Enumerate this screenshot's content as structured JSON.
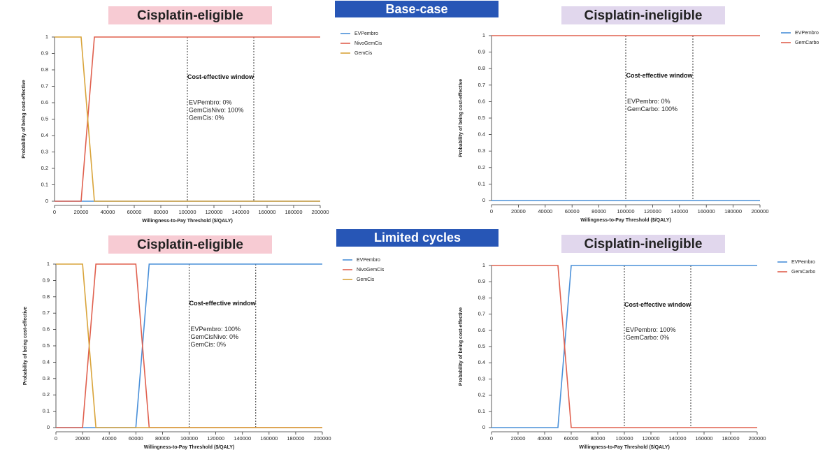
{
  "section_labels": [
    "Base-case",
    "Limited cycles"
  ],
  "chart_data": [
    {
      "type": "line",
      "title": "Cisplatin-eligible",
      "x_label": "Willingness-to-Pay Threshold ($/QALY)",
      "y_label": "Probability of being cost-effective",
      "x": [
        0,
        10000,
        20000,
        30000,
        40000,
        50000,
        60000,
        70000,
        80000,
        90000,
        100000,
        110000,
        120000,
        130000,
        140000,
        150000,
        160000,
        170000,
        180000,
        190000,
        200000
      ],
      "series": [
        {
          "name": "EVPembro",
          "color": "#4a90d9",
          "values": [
            0,
            0,
            0,
            0,
            0,
            0,
            0,
            0,
            0,
            0,
            0,
            0,
            0,
            0,
            0,
            0,
            0,
            0,
            0,
            0,
            0
          ]
        },
        {
          "name": "NivoGemCis",
          "color": "#e0604e",
          "values": [
            0,
            0,
            0,
            1,
            1,
            1,
            1,
            1,
            1,
            1,
            1,
            1,
            1,
            1,
            1,
            1,
            1,
            1,
            1,
            1,
            1
          ]
        },
        {
          "name": "GemCis",
          "color": "#d9a43a",
          "values": [
            1,
            1,
            1,
            0,
            0,
            0,
            0,
            0,
            0,
            0,
            0,
            0,
            0,
            0,
            0,
            0,
            0,
            0,
            0,
            0,
            0
          ]
        }
      ],
      "xlim": [
        0,
        200000
      ],
      "xticks": [
        0,
        20000,
        40000,
        60000,
        80000,
        100000,
        120000,
        140000,
        160000,
        180000,
        200000
      ],
      "ylim": [
        0,
        1
      ],
      "yticks": [
        0,
        0.1,
        0.2,
        0.3,
        0.4,
        0.5,
        0.6,
        0.7,
        0.8,
        0.9,
        1
      ],
      "vlines": [
        100000,
        150000
      ],
      "annotation": {
        "title": "Cost-effective window",
        "lines": [
          {
            "text": "EVPembro: 0%",
            "color": "#3b73c4"
          },
          {
            "text": "GemCisNivo: 100%",
            "color": "#d9432e"
          },
          {
            "text": "GemCis: 0%",
            "color": "#c97a1e"
          }
        ]
      }
    },
    {
      "type": "line",
      "title": "Cisplatin-ineligible",
      "x_label": "Willingness-to-Pay Threshold ($/QALY)",
      "y_label": "Probability of being cost-effective",
      "x": [
        0,
        10000,
        20000,
        30000,
        40000,
        50000,
        60000,
        70000,
        80000,
        90000,
        100000,
        110000,
        120000,
        130000,
        140000,
        150000,
        160000,
        170000,
        180000,
        190000,
        200000
      ],
      "series": [
        {
          "name": "EVPembro",
          "color": "#4a90d9",
          "values": [
            0,
            0,
            0,
            0,
            0,
            0,
            0,
            0,
            0,
            0,
            0,
            0,
            0,
            0,
            0,
            0,
            0,
            0,
            0,
            0,
            0
          ]
        },
        {
          "name": "GemCarbo",
          "color": "#e0604e",
          "values": [
            1,
            1,
            1,
            1,
            1,
            1,
            1,
            1,
            1,
            1,
            1,
            1,
            1,
            1,
            1,
            1,
            1,
            1,
            1,
            1,
            1
          ]
        }
      ],
      "xlim": [
        0,
        200000
      ],
      "xticks": [
        0,
        20000,
        40000,
        60000,
        80000,
        100000,
        120000,
        140000,
        160000,
        180000,
        200000
      ],
      "ylim": [
        0,
        1
      ],
      "yticks": [
        0,
        0.1,
        0.2,
        0.3,
        0.4,
        0.5,
        0.6,
        0.7,
        0.8,
        0.9,
        1
      ],
      "vlines": [
        100000,
        150000
      ],
      "annotation": {
        "title": "Cost-effective window",
        "lines": [
          {
            "text": "EVPembro: 0%",
            "color": "#3b73c4"
          },
          {
            "text": "GemCarbo: 100%",
            "color": "#d9432e"
          }
        ]
      }
    },
    {
      "type": "line",
      "title": "Cisplatin-eligible",
      "x_label": "Willingness-to-Pay Threshold ($/QALY)",
      "y_label": "Probability of being cost-effective",
      "x": [
        0,
        10000,
        20000,
        30000,
        40000,
        50000,
        60000,
        70000,
        80000,
        90000,
        100000,
        110000,
        120000,
        130000,
        140000,
        150000,
        160000,
        170000,
        180000,
        190000,
        200000
      ],
      "series": [
        {
          "name": "EVPembro",
          "color": "#4a90d9",
          "values": [
            0,
            0,
            0,
            0,
            0,
            0,
            0,
            1,
            1,
            1,
            1,
            1,
            1,
            1,
            1,
            1,
            1,
            1,
            1,
            1,
            1
          ]
        },
        {
          "name": "NivoGemCis",
          "color": "#e0604e",
          "values": [
            0,
            0,
            0,
            1,
            1,
            1,
            1,
            0,
            0,
            0,
            0,
            0,
            0,
            0,
            0,
            0,
            0,
            0,
            0,
            0,
            0
          ]
        },
        {
          "name": "GemCis",
          "color": "#d9a43a",
          "values": [
            1,
            1,
            1,
            0,
            0,
            0,
            0,
            0,
            0,
            0,
            0,
            0,
            0,
            0,
            0,
            0,
            0,
            0,
            0,
            0,
            0
          ]
        }
      ],
      "xlim": [
        0,
        200000
      ],
      "xticks": [
        0,
        20000,
        40000,
        60000,
        80000,
        100000,
        120000,
        140000,
        160000,
        180000,
        200000
      ],
      "ylim": [
        0,
        1
      ],
      "yticks": [
        0,
        0.1,
        0.2,
        0.3,
        0.4,
        0.5,
        0.6,
        0.7,
        0.8,
        0.9,
        1
      ],
      "vlines": [
        100000,
        150000
      ],
      "annotation": {
        "title": "Cost-effective window",
        "lines": [
          {
            "text": "EVPembro: 100%",
            "color": "#3b73c4"
          },
          {
            "text": "GemCisNivo: 0%",
            "color": "#d9432e"
          },
          {
            "text": "GemCis: 0%",
            "color": "#c97a1e"
          }
        ]
      }
    },
    {
      "type": "line",
      "title": "Cisplatin-ineligible",
      "x_label": "Willingness-to-Pay Threshold ($/QALY)",
      "y_label": "Probability of being cost-effective",
      "x": [
        0,
        10000,
        20000,
        30000,
        40000,
        50000,
        60000,
        70000,
        80000,
        90000,
        100000,
        110000,
        120000,
        130000,
        140000,
        150000,
        160000,
        170000,
        180000,
        190000,
        200000
      ],
      "series": [
        {
          "name": "EVPembro",
          "color": "#4a90d9",
          "values": [
            0,
            0,
            0,
            0,
            0,
            0,
            1,
            1,
            1,
            1,
            1,
            1,
            1,
            1,
            1,
            1,
            1,
            1,
            1,
            1,
            1
          ]
        },
        {
          "name": "GemCarbo",
          "color": "#e0604e",
          "values": [
            1,
            1,
            1,
            1,
            1,
            1,
            0,
            0,
            0,
            0,
            0,
            0,
            0,
            0,
            0,
            0,
            0,
            0,
            0,
            0,
            0
          ]
        }
      ],
      "xlim": [
        0,
        200000
      ],
      "xticks": [
        0,
        20000,
        40000,
        60000,
        80000,
        100000,
        120000,
        140000,
        160000,
        180000,
        200000
      ],
      "ylim": [
        0,
        1
      ],
      "yticks": [
        0,
        0.1,
        0.2,
        0.3,
        0.4,
        0.5,
        0.6,
        0.7,
        0.8,
        0.9,
        1
      ],
      "vlines": [
        100000,
        150000
      ],
      "annotation": {
        "title": "Cost-effective window",
        "lines": [
          {
            "text": "EVPembro: 100%",
            "color": "#3b73c4"
          },
          {
            "text": "GemCarbo: 0%",
            "color": "#d9432e"
          }
        ]
      }
    }
  ]
}
